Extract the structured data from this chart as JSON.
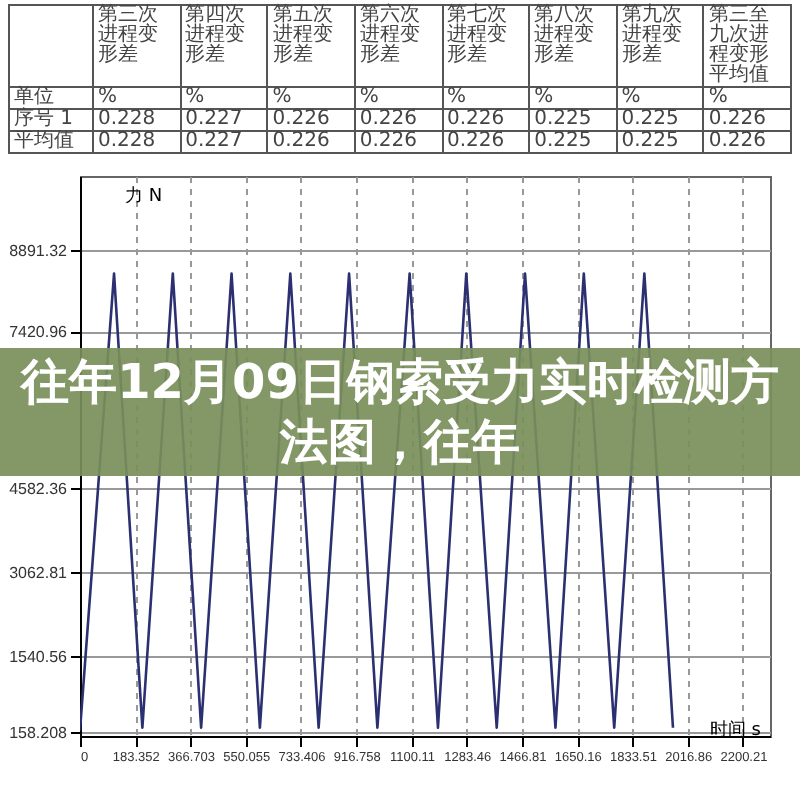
{
  "chart_data": {
    "type": "line",
    "title": "往年12月09日钢索受力实时检测方法图，往年",
    "xlabel": "时间 s",
    "ylabel": "力 N",
    "annotations": [
      "第三次进程变形差",
      "第四次进程变形差",
      "第五次进程变形差",
      "第六次进程变形差",
      "第七次进程变形差",
      "第八次进程变形差",
      "第九次进程变形差",
      "第三至九次进程变形平均值",
      "单位",
      "%",
      "%",
      "%",
      "%",
      "%",
      "%",
      "%",
      "%",
      "序号 1",
      "0.228",
      "0.227",
      "0.226",
      "0.226",
      "0.226",
      "0.225",
      "0.225",
      "0.226",
      "平均值",
      "0.228",
      "0.227",
      "0.226",
      "0.226",
      "0.226",
      "0.225",
      "0.225",
      "0.226"
    ],
    "x": [
      0,
      113,
      207,
      308,
      402,
      503,
      597,
      698,
      792,
      893,
      987,
      1094,
      1188,
      1282,
      1383,
      1477,
      1578,
      1672,
      1773,
      1873,
      1968
    ],
    "series": [
      {
        "color": "#2b3070",
        "values": [
          200,
          8480,
          250,
          8480,
          250,
          8480,
          250,
          8480,
          250,
          8480,
          250,
          8480,
          250,
          8480,
          250,
          8480,
          250,
          8480,
          250,
          8480,
          250
        ]
      }
    ],
    "xlim": [
      0,
      2290
    ],
    "ylim": [
      100,
      10250
    ],
    "xticks": [
      0,
      183.352,
      366.703,
      550.055,
      733.406,
      916.758,
      1100.11,
      1283.46,
      1466.81,
      1650.16,
      1833.51,
      2016.86,
      2200.21
    ],
    "yticks": [
      158.208,
      1540.56,
      3062.81,
      4582.36,
      7420.96,
      8891.32
    ],
    "grid": true,
    "legend": false,
    "marker": "none",
    "line_style": "solid"
  }
}
